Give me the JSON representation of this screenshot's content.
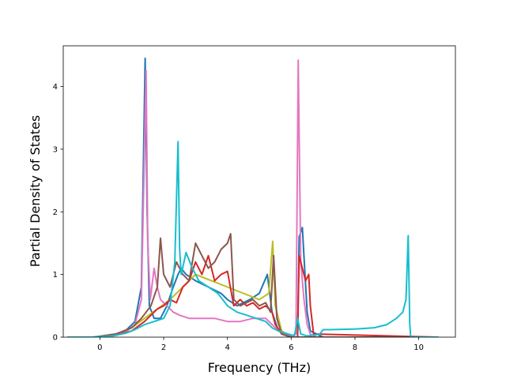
{
  "chart_data": {
    "type": "line",
    "xlabel": "Frequency (THz)",
    "ylabel": "Partial Density of States",
    "xlim": [
      -1.15,
      11.15
    ],
    "ylim": [
      0,
      4.65
    ],
    "xticks": [
      0,
      2,
      4,
      6,
      8,
      10
    ],
    "yticks": [
      0,
      1,
      2,
      3,
      4
    ],
    "grid": false,
    "series": [
      {
        "color": "#1f77b4",
        "x": [
          -1.0,
          -0.2,
          0.4,
          0.8,
          1.1,
          1.3,
          1.42,
          1.48,
          1.55,
          1.7,
          1.9,
          2.1,
          2.3,
          2.45,
          2.55,
          2.7,
          3.0,
          3.4,
          3.8,
          4.0,
          4.3,
          4.7,
          5.0,
          5.25,
          5.4,
          5.6,
          6.0,
          6.2,
          6.25,
          6.35,
          6.5,
          6.6,
          7.0,
          10.6
        ],
        "y": [
          0,
          0,
          0.03,
          0.1,
          0.25,
          0.8,
          4.45,
          2.0,
          0.5,
          0.3,
          0.3,
          0.5,
          0.8,
          1.0,
          1.1,
          1.0,
          0.9,
          0.8,
          0.7,
          0.6,
          0.5,
          0.6,
          0.7,
          1.0,
          0.4,
          0.1,
          0.0,
          0.0,
          1.6,
          1.75,
          0.4,
          0.1,
          0.0,
          0.0
        ]
      },
      {
        "color": "#bcbd22",
        "x": [
          -1.0,
          -0.2,
          0.5,
          1.0,
          1.4,
          1.8,
          2.2,
          2.6,
          3.0,
          3.5,
          4.0,
          4.5,
          5.0,
          5.3,
          5.42,
          5.5,
          5.7,
          6.0,
          10.6
        ],
        "y": [
          0,
          0,
          0.05,
          0.15,
          0.3,
          0.45,
          0.6,
          0.8,
          1.0,
          0.9,
          0.8,
          0.7,
          0.6,
          0.7,
          1.53,
          0.5,
          0.1,
          0.0,
          0.0
        ]
      },
      {
        "color": "#e377c2",
        "x": [
          -1.0,
          -0.2,
          0.4,
          0.8,
          1.1,
          1.3,
          1.45,
          1.5,
          1.58,
          1.7,
          1.8,
          1.9,
          2.0,
          2.1,
          2.3,
          2.5,
          2.8,
          3.2,
          3.6,
          4.0,
          4.4,
          4.8,
          5.2,
          5.4,
          5.6,
          6.0,
          6.15,
          6.22,
          6.3,
          6.4,
          6.5,
          6.6,
          6.8,
          10.6
        ],
        "y": [
          0,
          0,
          0.02,
          0.08,
          0.2,
          0.6,
          4.25,
          1.5,
          0.6,
          1.1,
          0.8,
          0.6,
          0.55,
          0.5,
          0.4,
          0.35,
          0.3,
          0.3,
          0.3,
          0.25,
          0.25,
          0.3,
          0.3,
          0.2,
          0.1,
          0.02,
          0.05,
          4.42,
          1.2,
          0.6,
          0.2,
          0.05,
          0.0,
          0.0
        ]
      },
      {
        "color": "#d62728",
        "x": [
          -1.0,
          -0.2,
          0.5,
          1.0,
          1.4,
          1.8,
          2.0,
          2.2,
          2.4,
          2.6,
          2.8,
          3.0,
          3.2,
          3.4,
          3.6,
          3.8,
          4.0,
          4.2,
          4.4,
          4.6,
          4.8,
          5.0,
          5.2,
          5.4,
          5.5,
          5.7,
          6.0,
          6.2,
          6.25,
          6.35,
          6.45,
          6.55,
          6.6,
          6.7,
          10.6
        ],
        "y": [
          0,
          0,
          0.03,
          0.1,
          0.25,
          0.45,
          0.5,
          0.6,
          0.55,
          0.8,
          0.9,
          1.2,
          1.0,
          1.3,
          0.9,
          1.0,
          1.05,
          0.5,
          0.6,
          0.5,
          0.55,
          0.45,
          0.5,
          0.4,
          0.2,
          0.05,
          0.0,
          0.0,
          1.3,
          1.1,
          0.9,
          1.0,
          0.5,
          0.05,
          0.0
        ]
      },
      {
        "color": "#8c564b",
        "x": [
          -1.0,
          -0.2,
          0.5,
          1.0,
          1.3,
          1.6,
          1.8,
          1.9,
          2.0,
          2.2,
          2.4,
          2.6,
          2.8,
          3.0,
          3.2,
          3.4,
          3.6,
          3.8,
          4.0,
          4.1,
          4.2,
          4.4,
          4.6,
          4.8,
          5.0,
          5.2,
          5.35,
          5.45,
          5.55,
          5.7,
          6.0,
          10.6
        ],
        "y": [
          0,
          0,
          0.05,
          0.15,
          0.3,
          0.5,
          0.8,
          1.58,
          1.0,
          0.8,
          1.2,
          1.0,
          0.9,
          1.5,
          1.3,
          1.1,
          1.2,
          1.4,
          1.5,
          1.65,
          0.6,
          0.5,
          0.55,
          0.6,
          0.5,
          0.55,
          0.4,
          1.3,
          0.3,
          0.05,
          0.0,
          0.0
        ]
      },
      {
        "color": "#17becf",
        "x": [
          -1.0,
          -0.2,
          0.4,
          0.8,
          1.1,
          1.4,
          1.7,
          2.0,
          2.2,
          2.35,
          2.45,
          2.5,
          2.55,
          2.7,
          2.9,
          3.1,
          3.4,
          3.7,
          4.0,
          4.3,
          4.6,
          4.9,
          5.2,
          5.4,
          5.6,
          5.9,
          6.1,
          6.2,
          6.3,
          6.5,
          6.7,
          6.9,
          7.0,
          7.2,
          8.0,
          8.6,
          9.0,
          9.3,
          9.5,
          9.6,
          9.67,
          9.72,
          9.75,
          9.8,
          10.6
        ],
        "y": [
          0,
          0,
          0.02,
          0.06,
          0.12,
          0.2,
          0.25,
          0.3,
          0.5,
          1.2,
          3.12,
          1.4,
          1.0,
          1.35,
          1.1,
          0.9,
          0.8,
          0.7,
          0.5,
          0.4,
          0.35,
          0.3,
          0.25,
          0.15,
          0.1,
          0.05,
          0.02,
          0.3,
          0.05,
          0.02,
          0.03,
          0.05,
          0.12,
          0.12,
          0.13,
          0.15,
          0.2,
          0.3,
          0.4,
          0.6,
          1.62,
          0.2,
          0.0,
          0.0,
          0.0
        ]
      }
    ]
  }
}
